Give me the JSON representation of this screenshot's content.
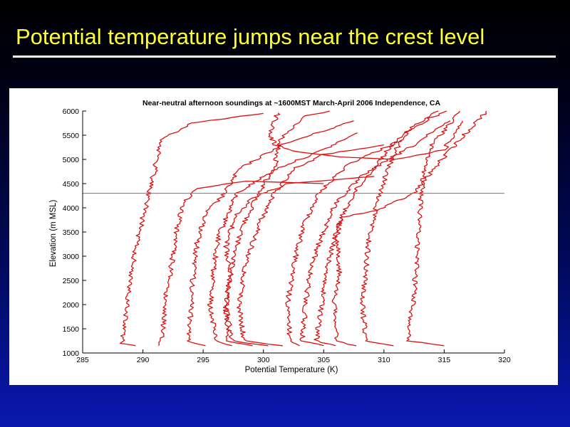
{
  "slide": {
    "title": "Potential temperature jumps near the crest level"
  },
  "chart_data": {
    "type": "line",
    "title": "Near-neutral afternoon soundings at ~1600MST March-April 2006 Independence, CA",
    "xlabel": "Potential Temperature (K)",
    "ylabel": "Elevation (m MSL)",
    "xlim": [
      285,
      320
    ],
    "ylim": [
      1000,
      6000
    ],
    "xticks": [
      285,
      290,
      295,
      300,
      305,
      310,
      315,
      320
    ],
    "yticks": [
      1000,
      1500,
      2000,
      2500,
      3000,
      3500,
      4000,
      4500,
      5000,
      5500,
      6000
    ],
    "grid": false,
    "line_color": "#dd1111",
    "reference_line": {
      "y": 4300,
      "color": "#777777"
    },
    "series": [
      {
        "points": [
          [
            289.4,
            1150
          ],
          [
            288.2,
            1200
          ],
          [
            288.5,
            1600
          ],
          [
            288.8,
            2300
          ],
          [
            289.3,
            3000
          ],
          [
            289.9,
            3700
          ],
          [
            290.5,
            4300
          ],
          [
            291.0,
            4800
          ],
          [
            291.5,
            5400
          ],
          [
            294.0,
            5750
          ],
          [
            300.0,
            5950
          ]
        ]
      },
      {
        "points": [
          [
            291.3,
            1150
          ],
          [
            291.6,
            1250
          ],
          [
            291.8,
            2000
          ],
          [
            292.3,
            2700
          ],
          [
            292.7,
            3400
          ],
          [
            293.3,
            4100
          ],
          [
            294.6,
            4400
          ],
          [
            298.5,
            4550
          ],
          [
            305.0,
            4500
          ]
        ]
      },
      {
        "points": [
          [
            295.2,
            1150
          ],
          [
            293.8,
            1250
          ],
          [
            294.0,
            2000
          ],
          [
            294.2,
            2700
          ],
          [
            294.5,
            3300
          ],
          [
            295.3,
            3900
          ],
          [
            296.8,
            4300
          ],
          [
            298.0,
            4800
          ],
          [
            301.5,
            5300
          ],
          [
            307.5,
            5800
          ]
        ]
      },
      {
        "points": [
          [
            297.4,
            1150
          ],
          [
            296.0,
            1250
          ],
          [
            295.6,
            2000
          ],
          [
            295.9,
            2800
          ],
          [
            296.4,
            3500
          ],
          [
            297.8,
            4300
          ],
          [
            301.0,
            4800
          ],
          [
            305.0,
            5200
          ],
          [
            307.8,
            5550
          ]
        ]
      },
      {
        "points": [
          [
            300.4,
            1150
          ],
          [
            297.4,
            1250
          ],
          [
            296.8,
            2000
          ],
          [
            297.4,
            2800
          ],
          [
            298.2,
            3600
          ],
          [
            299.6,
            4300
          ],
          [
            301.0,
            4900
          ],
          [
            301.4,
            5400
          ],
          [
            303.5,
            5900
          ],
          [
            305.5,
            6000
          ]
        ]
      },
      {
        "points": [
          [
            301.6,
            1150
          ],
          [
            298.4,
            1250
          ],
          [
            298.0,
            2000
          ],
          [
            298.6,
            2900
          ],
          [
            299.7,
            3700
          ],
          [
            300.9,
            4300
          ],
          [
            302.5,
            4800
          ],
          [
            305.0,
            5100
          ],
          [
            310.0,
            5300
          ]
        ]
      },
      {
        "points": [
          [
            299.1,
            1150
          ],
          [
            297.1,
            1250
          ],
          [
            296.9,
            2000
          ],
          [
            297.2,
            2600
          ],
          [
            296.9,
            3200
          ],
          [
            297.6,
            3800
          ],
          [
            299.1,
            4200
          ],
          [
            302.0,
            4500
          ],
          [
            309.2,
            4650
          ]
        ]
      },
      {
        "points": [
          [
            303.0,
            1150
          ],
          [
            302.2,
            1250
          ],
          [
            302.0,
            2000
          ],
          [
            302.6,
            2900
          ],
          [
            303.4,
            3700
          ],
          [
            304.6,
            4300
          ],
          [
            307.0,
            4900
          ],
          [
            311.5,
            5400
          ]
        ]
      },
      {
        "points": [
          [
            305.0,
            1150
          ],
          [
            303.2,
            1250
          ],
          [
            303.5,
            2000
          ],
          [
            303.9,
            2700
          ],
          [
            304.8,
            3400
          ],
          [
            306.0,
            4100
          ],
          [
            308.4,
            4700
          ],
          [
            312.5,
            5300
          ],
          [
            315.5,
            5800
          ]
        ]
      },
      {
        "points": [
          [
            306.0,
            1150
          ],
          [
            304.4,
            1250
          ],
          [
            304.8,
            2000
          ],
          [
            305.4,
            2900
          ],
          [
            306.3,
            3700
          ],
          [
            307.5,
            4300
          ],
          [
            309.4,
            4900
          ],
          [
            311.0,
            5400
          ],
          [
            313.8,
            5850
          ],
          [
            315.2,
            6000
          ]
        ]
      },
      {
        "points": [
          [
            307.7,
            1150
          ],
          [
            306.0,
            1250
          ],
          [
            305.9,
            2000
          ],
          [
            306.3,
            2700
          ],
          [
            306.1,
            3300
          ],
          [
            306.4,
            3800
          ],
          [
            309.5,
            3950
          ],
          [
            312.5,
            4300
          ],
          [
            314.8,
            5000
          ],
          [
            318.5,
            6000
          ]
        ]
      },
      {
        "points": [
          [
            310.8,
            1150
          ],
          [
            308.5,
            1250
          ],
          [
            308.2,
            2000
          ],
          [
            308.5,
            2700
          ],
          [
            308.8,
            3400
          ],
          [
            309.4,
            4100
          ],
          [
            310.2,
            4700
          ],
          [
            311.0,
            5200
          ],
          [
            312.0,
            5600
          ],
          [
            314.5,
            6000
          ]
        ]
      },
      {
        "points": [
          [
            315.0,
            1150
          ],
          [
            312.0,
            1250
          ],
          [
            312.4,
            2000
          ],
          [
            312.7,
            2800
          ],
          [
            312.9,
            3600
          ],
          [
            313.1,
            4300
          ],
          [
            313.4,
            4800
          ],
          [
            314.0,
            5300
          ],
          [
            316.3,
            6000
          ]
        ]
      },
      {
        "points": [
          [
            301.2,
            5960
          ],
          [
            300.5,
            5500
          ],
          [
            301.0,
            5300
          ],
          [
            303.0,
            5150
          ],
          [
            306.5,
            5050
          ],
          [
            311.0,
            5000
          ],
          [
            315.0,
            5200
          ],
          [
            316.5,
            5800
          ]
        ]
      }
    ]
  }
}
